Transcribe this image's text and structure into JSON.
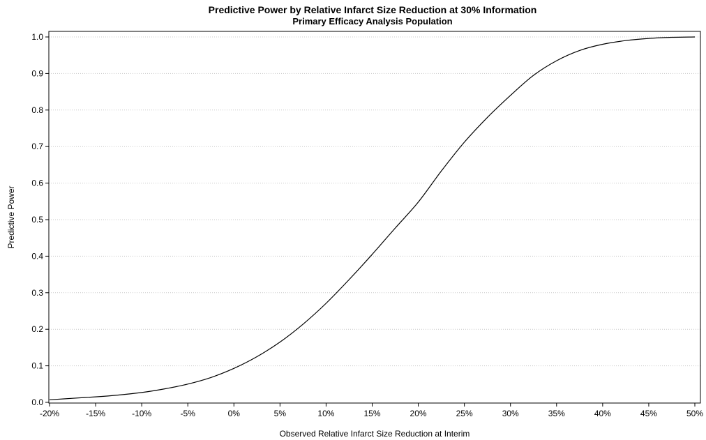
{
  "chart_data": {
    "type": "line",
    "title": "Predictive Power by Relative Infarct Size Reduction at 30% Information",
    "subtitle": "Primary Efficacy Analysis Population",
    "xlabel": "Observed Relative Infarct Size Reduction at Interim",
    "ylabel": "Predictive Power",
    "xlim": [
      -20,
      50
    ],
    "ylim": [
      0,
      1.0
    ],
    "x_ticks": [
      "-20%",
      "-15%",
      "-10%",
      "-5%",
      "0%",
      "5%",
      "10%",
      "15%",
      "20%",
      "25%",
      "30%",
      "35%",
      "40%",
      "45%",
      "50%"
    ],
    "y_ticks": [
      "0.0",
      "0.1",
      "0.2",
      "0.3",
      "0.4",
      "0.5",
      "0.6",
      "0.7",
      "0.8",
      "0.9",
      "1.0"
    ],
    "grid": "horizontal dashed",
    "colors": {
      "line": "#000000",
      "grid": "#c8c8c8",
      "axis": "#000000"
    },
    "series": [
      {
        "x": [
          -20,
          -17.5,
          -15,
          -12.5,
          -10,
          -7.5,
          -5,
          -2.5,
          0,
          2.5,
          5,
          7.5,
          10,
          12.5,
          15,
          17.5,
          20,
          22.5,
          25,
          27.5,
          30,
          32.5,
          35,
          37.5,
          40,
          42.5,
          45,
          47.5,
          50
        ],
        "values": [
          0.007,
          0.011,
          0.015,
          0.02,
          0.027,
          0.037,
          0.05,
          0.068,
          0.093,
          0.125,
          0.165,
          0.214,
          0.271,
          0.336,
          0.405,
          0.477,
          0.548,
          0.633,
          0.712,
          0.78,
          0.84,
          0.895,
          0.935,
          0.963,
          0.98,
          0.99,
          0.996,
          0.999,
          1.0
        ]
      }
    ]
  }
}
